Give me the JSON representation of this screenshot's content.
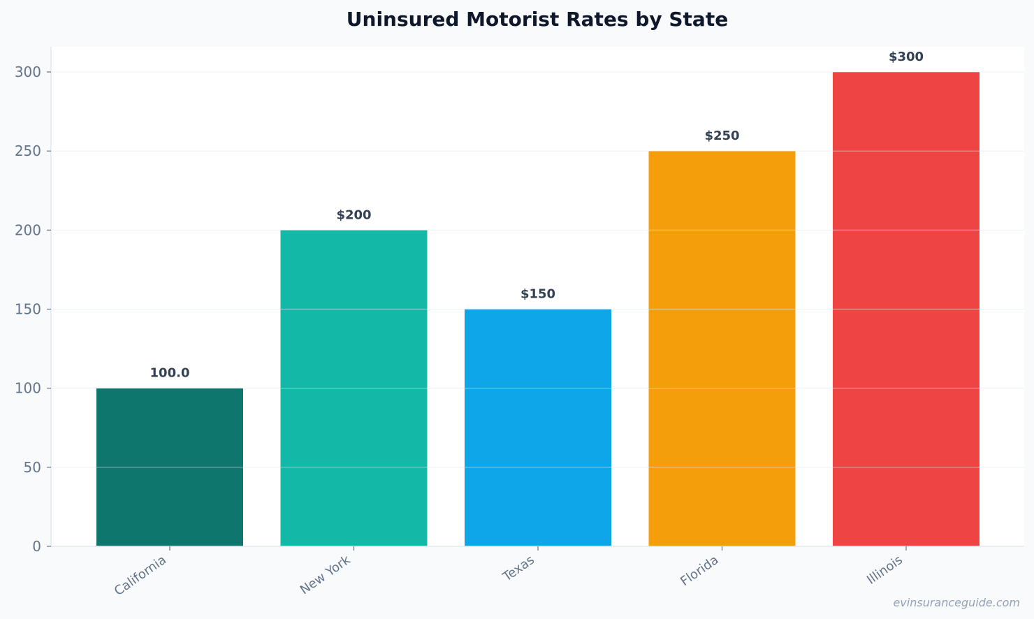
{
  "chart_data": {
    "type": "bar",
    "title": "Uninsured Motorist Rates by State",
    "xlabel": "",
    "ylabel": "",
    "categories": [
      "California",
      "New York",
      "Texas",
      "Florida",
      "Illinois"
    ],
    "values": [
      100,
      200,
      150,
      250,
      300
    ],
    "value_labels": [
      "100.0",
      "$200",
      "$150",
      "$250",
      "$300"
    ],
    "colors": [
      "#0f766e",
      "#14b8a6",
      "#0ea5e9",
      "#f59e0b",
      "#ef4444"
    ],
    "ylim": [
      0,
      315
    ],
    "yticks": [
      0,
      50,
      100,
      150,
      200,
      250,
      300
    ],
    "grid": true,
    "legend": "none"
  },
  "watermark": "evinsuranceguide.com"
}
